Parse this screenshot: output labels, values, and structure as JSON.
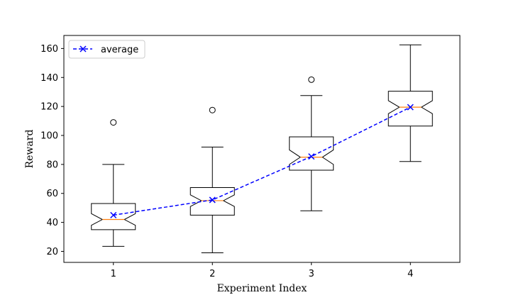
{
  "chart_data": {
    "type": "box",
    "xlabel": "Experiment Index",
    "ylabel": "Reward",
    "xlim": [
      0.5,
      4.5
    ],
    "ylim": [
      12.4,
      169.0
    ],
    "x_ticks": [
      1,
      2,
      3,
      4
    ],
    "y_ticks": [
      20,
      40,
      60,
      80,
      100,
      120,
      140,
      160
    ],
    "grid": false,
    "notched": true,
    "boxes": [
      {
        "x": 1,
        "whislo": 23.5,
        "q1": 35.0,
        "med": 42.0,
        "q3": 53.0,
        "whishi": 80.0,
        "ci_low": 38.0,
        "ci_high": 46.0,
        "fliers": [
          109.0
        ]
      },
      {
        "x": 2,
        "whislo": 19.0,
        "q1": 45.0,
        "med": 55.0,
        "q3": 64.0,
        "whishi": 92.0,
        "ci_low": 51.0,
        "ci_high": 59.0,
        "fliers": [
          117.5
        ]
      },
      {
        "x": 3,
        "whislo": 48.0,
        "q1": 76.0,
        "med": 85.0,
        "q3": 99.0,
        "whishi": 127.5,
        "ci_low": 80.0,
        "ci_high": 90.0,
        "fliers": [
          138.5
        ]
      },
      {
        "x": 4,
        "whislo": 82.0,
        "q1": 106.5,
        "med": 119.5,
        "q3": 130.5,
        "whishi": 162.5,
        "ci_low": 115.0,
        "ci_high": 124.0,
        "fliers": []
      }
    ],
    "series": [
      {
        "name": "average",
        "x": [
          1,
          2,
          3,
          4
        ],
        "values": [
          45.0,
          55.5,
          85.5,
          119.5
        ],
        "color": "#0000ff",
        "linestyle": "dashed",
        "marker": "x"
      }
    ],
    "legend": {
      "placement": "top-left",
      "entries": [
        "average"
      ]
    },
    "colors": {
      "box": "#000000",
      "median": "#ff7f0e",
      "average": "#0000ff"
    }
  }
}
